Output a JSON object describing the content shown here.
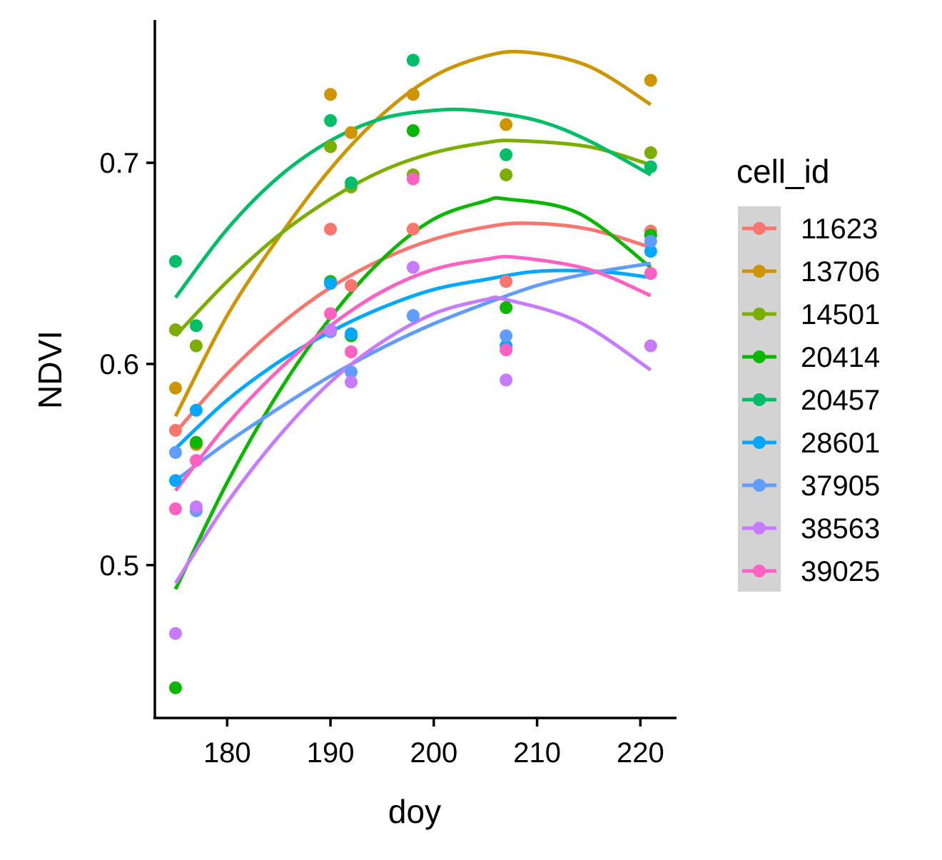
{
  "chart_data": {
    "type": "scatter",
    "title": "",
    "xlabel": "doy",
    "ylabel": "NDVI",
    "xlim": [
      173,
      223.5
    ],
    "ylim": [
      0.424,
      0.771
    ],
    "x_ticks": [
      180,
      190,
      200,
      210,
      220
    ],
    "x_tick_labels": [
      "180",
      "190",
      "200",
      "210",
      "220"
    ],
    "y_ticks": [
      0.5,
      0.6,
      0.7
    ],
    "y_tick_labels": [
      "0.5",
      "0.6",
      "0.7"
    ],
    "grid": false,
    "legend": {
      "title": "cell_id",
      "position": "right"
    },
    "series": [
      {
        "name": "11623",
        "color": "#F8766D",
        "points": [
          [
            175,
            0.567
          ],
          [
            177,
            0.56
          ],
          [
            190,
            0.667
          ],
          [
            192,
            0.639
          ],
          [
            198,
            0.667
          ],
          [
            207,
            0.641
          ],
          [
            221,
            0.666
          ]
        ],
        "fit": [
          [
            175,
            0.566
          ],
          [
            180,
            0.595
          ],
          [
            185,
            0.619
          ],
          [
            190,
            0.638
          ],
          [
            195,
            0.652
          ],
          [
            200,
            0.662
          ],
          [
            205,
            0.668
          ],
          [
            209,
            0.67
          ],
          [
            215,
            0.667
          ],
          [
            221,
            0.658
          ]
        ]
      },
      {
        "name": "13706",
        "color": "#CD9600",
        "points": [
          [
            175,
            0.588
          ],
          [
            177,
            0.56
          ],
          [
            190,
            0.734
          ],
          [
            192,
            0.715
          ],
          [
            198,
            0.734
          ],
          [
            207,
            0.719
          ],
          [
            221,
            0.741
          ]
        ],
        "fit": [
          [
            175,
            0.574
          ],
          [
            180,
            0.624
          ],
          [
            185,
            0.663
          ],
          [
            190,
            0.697
          ],
          [
            195,
            0.724
          ],
          [
            200,
            0.743
          ],
          [
            205,
            0.753
          ],
          [
            209,
            0.755
          ],
          [
            215,
            0.748
          ],
          [
            221,
            0.729
          ]
        ]
      },
      {
        "name": "14501",
        "color": "#7CAE00",
        "points": [
          [
            175,
            0.617
          ],
          [
            177,
            0.609
          ],
          [
            190,
            0.708
          ],
          [
            192,
            0.688
          ],
          [
            198,
            0.694
          ],
          [
            207,
            0.694
          ],
          [
            221,
            0.705
          ]
        ],
        "fit": [
          [
            175,
            0.614
          ],
          [
            180,
            0.641
          ],
          [
            185,
            0.664
          ],
          [
            190,
            0.682
          ],
          [
            195,
            0.696
          ],
          [
            200,
            0.705
          ],
          [
            205,
            0.71
          ],
          [
            208,
            0.711
          ],
          [
            215,
            0.708
          ],
          [
            221,
            0.699
          ]
        ]
      },
      {
        "name": "20414",
        "color": "#0CB702",
        "points": [
          [
            175,
            0.439
          ],
          [
            177,
            0.561
          ],
          [
            190,
            0.641
          ],
          [
            192,
            0.614
          ],
          [
            198,
            0.716
          ],
          [
            207,
            0.628
          ],
          [
            221,
            0.664
          ]
        ],
        "fit": [
          [
            175,
            0.488
          ],
          [
            180,
            0.541
          ],
          [
            185,
            0.586
          ],
          [
            190,
            0.623
          ],
          [
            195,
            0.652
          ],
          [
            200,
            0.672
          ],
          [
            205,
            0.681
          ],
          [
            207,
            0.682
          ],
          [
            214,
            0.675
          ],
          [
            221,
            0.648
          ]
        ]
      },
      {
        "name": "20457",
        "color": "#00BE67",
        "points": [
          [
            175,
            0.651
          ],
          [
            177,
            0.619
          ],
          [
            190,
            0.721
          ],
          [
            192,
            0.69
          ],
          [
            198,
            0.751
          ],
          [
            207,
            0.704
          ],
          [
            221,
            0.698
          ]
        ],
        "fit": [
          [
            175,
            0.633
          ],
          [
            180,
            0.667
          ],
          [
            185,
            0.693
          ],
          [
            190,
            0.711
          ],
          [
            195,
            0.722
          ],
          [
            200,
            0.726
          ],
          [
            204,
            0.726
          ],
          [
            210,
            0.721
          ],
          [
            215,
            0.711
          ],
          [
            221,
            0.694
          ]
        ]
      },
      {
        "name": "28601",
        "color": "#00A9FF",
        "points": [
          [
            175,
            0.542
          ],
          [
            177,
            0.577
          ],
          [
            190,
            0.64
          ],
          [
            192,
            0.615
          ],
          [
            198,
            0.624
          ],
          [
            207,
            0.609
          ],
          [
            221,
            0.656
          ]
        ],
        "fit": [
          [
            175,
            0.558
          ],
          [
            180,
            0.582
          ],
          [
            185,
            0.601
          ],
          [
            190,
            0.616
          ],
          [
            195,
            0.628
          ],
          [
            200,
            0.637
          ],
          [
            205,
            0.642
          ],
          [
            210,
            0.646
          ],
          [
            216,
            0.646
          ],
          [
            221,
            0.643
          ]
        ]
      },
      {
        "name": "37905",
        "color": "#619CFF",
        "points": [
          [
            175,
            0.556
          ],
          [
            177,
            0.527
          ],
          [
            190,
            0.616
          ],
          [
            192,
            0.596
          ],
          [
            198,
            0.624
          ],
          [
            207,
            0.614
          ],
          [
            221,
            0.661
          ]
        ],
        "fit": [
          [
            175,
            0.542
          ],
          [
            180,
            0.561
          ],
          [
            185,
            0.578
          ],
          [
            190,
            0.594
          ],
          [
            195,
            0.608
          ],
          [
            200,
            0.62
          ],
          [
            205,
            0.63
          ],
          [
            210,
            0.639
          ],
          [
            215,
            0.645
          ],
          [
            221,
            0.65
          ]
        ]
      },
      {
        "name": "38563",
        "color": "#C77CFF",
        "points": [
          [
            175,
            0.466
          ],
          [
            177,
            0.529
          ],
          [
            190,
            0.617
          ],
          [
            192,
            0.591
          ],
          [
            198,
            0.648
          ],
          [
            207,
            0.592
          ],
          [
            221,
            0.609
          ]
        ],
        "fit": [
          [
            175,
            0.491
          ],
          [
            180,
            0.531
          ],
          [
            185,
            0.564
          ],
          [
            190,
            0.591
          ],
          [
            195,
            0.611
          ],
          [
            200,
            0.625
          ],
          [
            205,
            0.632
          ],
          [
            207,
            0.632
          ],
          [
            214,
            0.621
          ],
          [
            221,
            0.597
          ]
        ]
      },
      {
        "name": "39025",
        "color": "#FF61C3",
        "points": [
          [
            175,
            0.528
          ],
          [
            177,
            0.552
          ],
          [
            190,
            0.625
          ],
          [
            192,
            0.606
          ],
          [
            198,
            0.692
          ],
          [
            207,
            0.607
          ],
          [
            221,
            0.645
          ]
        ],
        "fit": [
          [
            175,
            0.537
          ],
          [
            180,
            0.57
          ],
          [
            185,
            0.597
          ],
          [
            190,
            0.619
          ],
          [
            195,
            0.636
          ],
          [
            200,
            0.647
          ],
          [
            205,
            0.652
          ],
          [
            208,
            0.653
          ],
          [
            215,
            0.647
          ],
          [
            221,
            0.634
          ]
        ]
      }
    ]
  }
}
